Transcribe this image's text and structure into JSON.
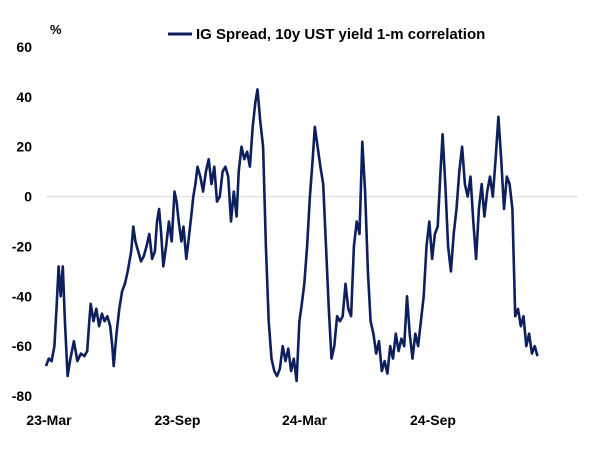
{
  "chart_data": {
    "type": "line",
    "title": "",
    "ylabel": "%",
    "xlabel": "",
    "ylim": [
      -80,
      60
    ],
    "y_ticks": [
      -80,
      -60,
      -40,
      -20,
      0,
      20,
      40,
      60
    ],
    "x_tick_labels": [
      "23-Mar",
      "23-Sep",
      "24-Mar",
      "24-Sep"
    ],
    "x_tick_dates": [
      "2023-03-01",
      "2023-09-01",
      "2024-03-01",
      "2024-09-01"
    ],
    "x_range": [
      "2023-03-01",
      "2025-04-01"
    ],
    "grid": false,
    "zero_line": true,
    "legend_position": "top",
    "series": [
      {
        "name": "IG Spread, 10y UST yield 1-m correlation",
        "color": "#0d1f5c",
        "points": [
          [
            "2023-03-01",
            -68
          ],
          [
            "2023-03-05",
            -65
          ],
          [
            "2023-03-09",
            -66
          ],
          [
            "2023-03-13",
            -60
          ],
          [
            "2023-03-16",
            -45
          ],
          [
            "2023-03-19",
            -28
          ],
          [
            "2023-03-22",
            -40
          ],
          [
            "2023-03-25",
            -28
          ],
          [
            "2023-03-28",
            -50
          ],
          [
            "2023-04-01",
            -72
          ],
          [
            "2023-04-05",
            -65
          ],
          [
            "2023-04-10",
            -58
          ],
          [
            "2023-04-15",
            -66
          ],
          [
            "2023-04-20",
            -63
          ],
          [
            "2023-04-25",
            -64
          ],
          [
            "2023-04-29",
            -62
          ],
          [
            "2023-05-02",
            -50
          ],
          [
            "2023-05-04",
            -43
          ],
          [
            "2023-05-08",
            -50
          ],
          [
            "2023-05-12",
            -45
          ],
          [
            "2023-05-16",
            -52
          ],
          [
            "2023-05-20",
            -47
          ],
          [
            "2023-05-24",
            -50
          ],
          [
            "2023-05-28",
            -48
          ],
          [
            "2023-06-01",
            -52
          ],
          [
            "2023-06-04",
            -60
          ],
          [
            "2023-06-06",
            -68
          ],
          [
            "2023-06-10",
            -55
          ],
          [
            "2023-06-14",
            -45
          ],
          [
            "2023-06-18",
            -38
          ],
          [
            "2023-06-22",
            -35
          ],
          [
            "2023-06-26",
            -30
          ],
          [
            "2023-07-01",
            -22
          ],
          [
            "2023-07-04",
            -12
          ],
          [
            "2023-07-07",
            -18
          ],
          [
            "2023-07-11",
            -22
          ],
          [
            "2023-07-15",
            -26
          ],
          [
            "2023-07-19",
            -24
          ],
          [
            "2023-07-23",
            -20
          ],
          [
            "2023-07-27",
            -15
          ],
          [
            "2023-07-31",
            -25
          ],
          [
            "2023-08-04",
            -22
          ],
          [
            "2023-08-07",
            -10
          ],
          [
            "2023-08-10",
            -5
          ],
          [
            "2023-08-13",
            -15
          ],
          [
            "2023-08-16",
            -28
          ],
          [
            "2023-08-20",
            -20
          ],
          [
            "2023-08-24",
            -10
          ],
          [
            "2023-08-28",
            -18
          ],
          [
            "2023-09-01",
            2
          ],
          [
            "2023-09-04",
            -2
          ],
          [
            "2023-09-07",
            -10
          ],
          [
            "2023-09-11",
            -18
          ],
          [
            "2023-09-14",
            -12
          ],
          [
            "2023-09-18",
            -25
          ],
          [
            "2023-09-21",
            -18
          ],
          [
            "2023-09-25",
            -8
          ],
          [
            "2023-09-28",
            0
          ],
          [
            "2023-10-01",
            5
          ],
          [
            "2023-10-04",
            12
          ],
          [
            "2023-10-08",
            8
          ],
          [
            "2023-10-12",
            2
          ],
          [
            "2023-10-16",
            10
          ],
          [
            "2023-10-20",
            15
          ],
          [
            "2023-10-24",
            5
          ],
          [
            "2023-10-28",
            12
          ],
          [
            "2023-11-01",
            -2
          ],
          [
            "2023-11-05",
            0
          ],
          [
            "2023-11-09",
            10
          ],
          [
            "2023-11-13",
            12
          ],
          [
            "2023-11-17",
            8
          ],
          [
            "2023-11-21",
            -10
          ],
          [
            "2023-11-25",
            2
          ],
          [
            "2023-11-29",
            -8
          ],
          [
            "2023-12-02",
            10
          ],
          [
            "2023-12-06",
            20
          ],
          [
            "2023-12-10",
            15
          ],
          [
            "2023-12-14",
            18
          ],
          [
            "2023-12-18",
            12
          ],
          [
            "2023-12-22",
            28
          ],
          [
            "2023-12-26",
            38
          ],
          [
            "2023-12-29",
            43
          ],
          [
            "2024-01-02",
            30
          ],
          [
            "2024-01-06",
            20
          ],
          [
            "2024-01-10",
            -20
          ],
          [
            "2024-01-14",
            -50
          ],
          [
            "2024-01-18",
            -65
          ],
          [
            "2024-01-22",
            -70
          ],
          [
            "2024-01-26",
            -72
          ],
          [
            "2024-01-30",
            -69
          ],
          [
            "2024-02-03",
            -60
          ],
          [
            "2024-02-07",
            -66
          ],
          [
            "2024-02-11",
            -61
          ],
          [
            "2024-02-15",
            -70
          ],
          [
            "2024-02-19",
            -65
          ],
          [
            "2024-02-23",
            -74
          ],
          [
            "2024-02-27",
            -50
          ],
          [
            "2024-03-01",
            -44
          ],
          [
            "2024-03-05",
            -35
          ],
          [
            "2024-03-09",
            -20
          ],
          [
            "2024-03-13",
            0
          ],
          [
            "2024-03-17",
            15
          ],
          [
            "2024-03-20",
            28
          ],
          [
            "2024-03-24",
            20
          ],
          [
            "2024-03-28",
            12
          ],
          [
            "2024-04-01",
            5
          ],
          [
            "2024-04-05",
            -20
          ],
          [
            "2024-04-09",
            -45
          ],
          [
            "2024-04-13",
            -65
          ],
          [
            "2024-04-17",
            -60
          ],
          [
            "2024-04-21",
            -48
          ],
          [
            "2024-04-25",
            -50
          ],
          [
            "2024-04-29",
            -48
          ],
          [
            "2024-05-03",
            -35
          ],
          [
            "2024-05-07",
            -45
          ],
          [
            "2024-05-11",
            -48
          ],
          [
            "2024-05-15",
            -20
          ],
          [
            "2024-05-19",
            -10
          ],
          [
            "2024-05-23",
            -15
          ],
          [
            "2024-05-27",
            22
          ],
          [
            "2024-05-31",
            2
          ],
          [
            "2024-06-04",
            -30
          ],
          [
            "2024-06-08",
            -50
          ],
          [
            "2024-06-12",
            -55
          ],
          [
            "2024-06-16",
            -63
          ],
          [
            "2024-06-20",
            -58
          ],
          [
            "2024-06-24",
            -70
          ],
          [
            "2024-06-28",
            -66
          ],
          [
            "2024-07-02",
            -71
          ],
          [
            "2024-07-06",
            -60
          ],
          [
            "2024-07-10",
            -65
          ],
          [
            "2024-07-14",
            -55
          ],
          [
            "2024-07-18",
            -62
          ],
          [
            "2024-07-22",
            -57
          ],
          [
            "2024-07-26",
            -60
          ],
          [
            "2024-07-30",
            -40
          ],
          [
            "2024-08-03",
            -55
          ],
          [
            "2024-08-07",
            -65
          ],
          [
            "2024-08-11",
            -55
          ],
          [
            "2024-08-15",
            -60
          ],
          [
            "2024-08-19",
            -50
          ],
          [
            "2024-08-23",
            -40
          ],
          [
            "2024-08-27",
            -20
          ],
          [
            "2024-08-31",
            -10
          ],
          [
            "2024-09-04",
            -25
          ],
          [
            "2024-09-08",
            -15
          ],
          [
            "2024-09-12",
            -12
          ],
          [
            "2024-09-16",
            10
          ],
          [
            "2024-09-19",
            25
          ],
          [
            "2024-09-23",
            5
          ],
          [
            "2024-09-27",
            -20
          ],
          [
            "2024-10-01",
            -30
          ],
          [
            "2024-10-05",
            -15
          ],
          [
            "2024-10-09",
            -5
          ],
          [
            "2024-10-13",
            10
          ],
          [
            "2024-10-17",
            20
          ],
          [
            "2024-10-21",
            5
          ],
          [
            "2024-10-25",
            0
          ],
          [
            "2024-10-29",
            8
          ],
          [
            "2024-11-02",
            -10
          ],
          [
            "2024-11-06",
            -25
          ],
          [
            "2024-11-10",
            -5
          ],
          [
            "2024-11-14",
            5
          ],
          [
            "2024-11-18",
            -8
          ],
          [
            "2024-11-22",
            2
          ],
          [
            "2024-11-26",
            8
          ],
          [
            "2024-11-30",
            0
          ],
          [
            "2024-12-04",
            15
          ],
          [
            "2024-12-08",
            32
          ],
          [
            "2024-12-12",
            15
          ],
          [
            "2024-12-16",
            -5
          ],
          [
            "2024-12-20",
            8
          ],
          [
            "2024-12-24",
            5
          ],
          [
            "2024-12-28",
            -5
          ],
          [
            "2025-01-01",
            -48
          ],
          [
            "2025-01-05",
            -45
          ],
          [
            "2025-01-09",
            -52
          ],
          [
            "2025-01-13",
            -48
          ],
          [
            "2025-01-17",
            -60
          ],
          [
            "2025-01-21",
            -55
          ],
          [
            "2025-01-25",
            -63
          ],
          [
            "2025-01-29",
            -60
          ],
          [
            "2025-02-02",
            -64
          ]
        ]
      }
    ]
  }
}
